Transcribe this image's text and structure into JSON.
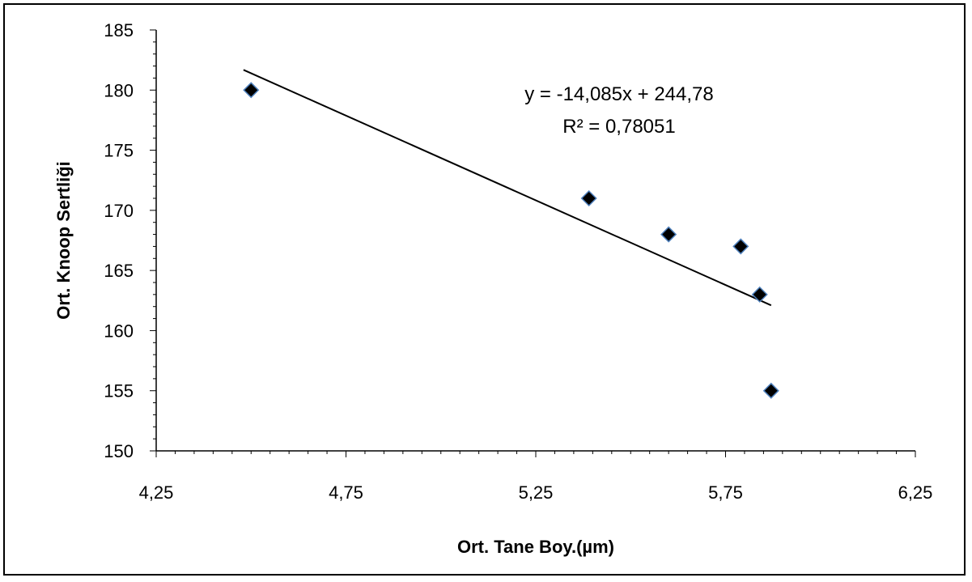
{
  "chart_data": {
    "type": "scatter",
    "title": "",
    "xlabel": "Ort. Tane Boy.(µm)",
    "ylabel": "Ort. Knoop Sertliği",
    "xlim": [
      4.25,
      6.25
    ],
    "ylim": [
      150,
      185
    ],
    "x_ticks": [
      "4,25",
      "4,75",
      "5,25",
      "5,75",
      "6,25"
    ],
    "y_ticks": [
      "150",
      "155",
      "160",
      "165",
      "170",
      "175",
      "180",
      "185"
    ],
    "points": [
      {
        "x": 4.5,
        "y": 180
      },
      {
        "x": 5.39,
        "y": 171
      },
      {
        "x": 5.6,
        "y": 168
      },
      {
        "x": 5.79,
        "y": 167
      },
      {
        "x": 5.84,
        "y": 163
      },
      {
        "x": 5.87,
        "y": 155
      }
    ],
    "trendline": {
      "slope": -14.085,
      "intercept": 244.78,
      "x_range": [
        4.5,
        5.87
      ],
      "equation_label": "y = -14,085x + 244,78",
      "r2_label": "R² = 0,78051"
    },
    "grid": false,
    "legend": "none",
    "marker_color": "#000000",
    "marker_edge_color": "#4f81bd"
  }
}
